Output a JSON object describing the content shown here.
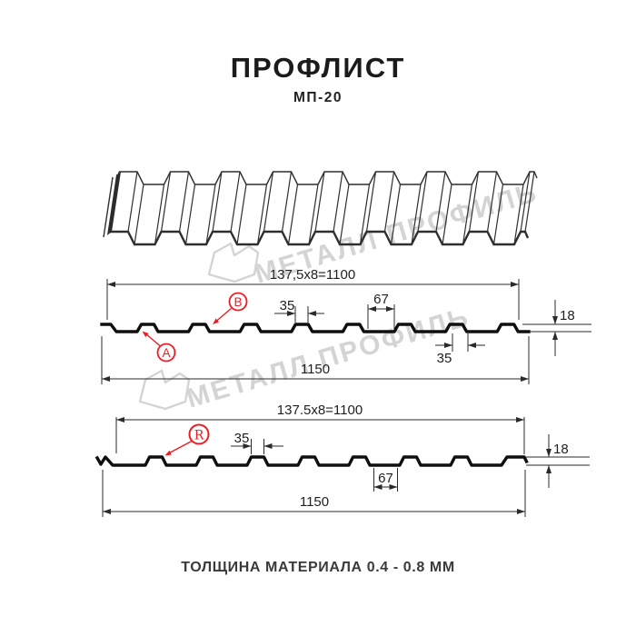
{
  "header": {
    "title": "ПРОФЛИСТ",
    "subtitle": "МП-20"
  },
  "watermark": {
    "text": "МЕТАЛЛ ПРОФИЛЬ"
  },
  "sections": {
    "profile_ab": {
      "length_top": "137,5x8=1100",
      "length_bottom": "1150",
      "rib_width": "35",
      "valley_width": "67",
      "height": "18",
      "rib_bottom_width": "35",
      "label_a": "A",
      "label_b": "B"
    },
    "profile_r": {
      "length_top": "137.5x8=1100",
      "length_bottom": "1150",
      "rib_width": "35",
      "valley_width": "67",
      "height": "18",
      "label_r": "R"
    }
  },
  "footer": {
    "note": "ТОЛЩИНА МАТЕРИАЛА 0.4 - 0.8 ММ"
  },
  "colors": {
    "accent": "#ed1c24",
    "line": "#0f0f0f",
    "dim": "#2a2a2a",
    "watermark": "#d4d4d4"
  }
}
